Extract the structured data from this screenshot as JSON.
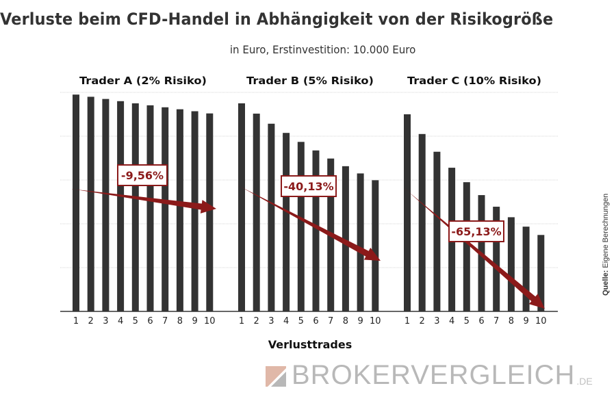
{
  "chart_data": [
    {
      "type": "bar",
      "title": "Trader A (2% Risiko)",
      "categories": [
        "1",
        "2",
        "3",
        "4",
        "5",
        "6",
        "7",
        "8",
        "9",
        "10"
      ],
      "values": [
        9900,
        9800,
        9700,
        9600,
        9500,
        9410,
        9320,
        9230,
        9140,
        9040
      ],
      "annotation": "-9,56%",
      "xlabel": "Verlusttrades",
      "ylim": [
        0,
        10000
      ],
      "grid": true
    },
    {
      "type": "bar",
      "title": "Trader B (5% Risiko)",
      "categories": [
        "1",
        "2",
        "3",
        "4",
        "5",
        "6",
        "7",
        "8",
        "9",
        "10"
      ],
      "values": [
        9500,
        9030,
        8570,
        8150,
        7740,
        7350,
        6980,
        6630,
        6300,
        5990
      ],
      "annotation": "-40,13%",
      "xlabel": "Verlusttrades",
      "ylim": [
        0,
        10000
      ],
      "grid": true
    },
    {
      "type": "bar",
      "title": "Trader C (10% Risiko)",
      "categories": [
        "1",
        "2",
        "3",
        "4",
        "5",
        "6",
        "7",
        "8",
        "9",
        "10"
      ],
      "values": [
        9000,
        8100,
        7290,
        6560,
        5900,
        5310,
        4780,
        4300,
        3870,
        3490
      ],
      "annotation": "-65,13%",
      "xlabel": "Verlusttrades",
      "ylim": [
        0,
        10000
      ],
      "grid": true
    }
  ],
  "header": {
    "title": "Verluste beim CFD-Handel in Abhängigkeit von der Risikogröße",
    "subtitle": "in Euro, Erstinvestition: 10.000 Euro"
  },
  "xlabel": "Verlusttrades",
  "source": {
    "label": "Quelle:",
    "text": " Eigene Berechnungen"
  },
  "logo": {
    "main": "BROKERVERGLEICH",
    "suffix": ".DE"
  },
  "colors": {
    "bar": "#333333",
    "arrow": "#8b1a1a",
    "grid": "#dddddd",
    "axis": "#333333",
    "logo": "#b8b8b8",
    "logo_accent": "#e0b8a8"
  }
}
